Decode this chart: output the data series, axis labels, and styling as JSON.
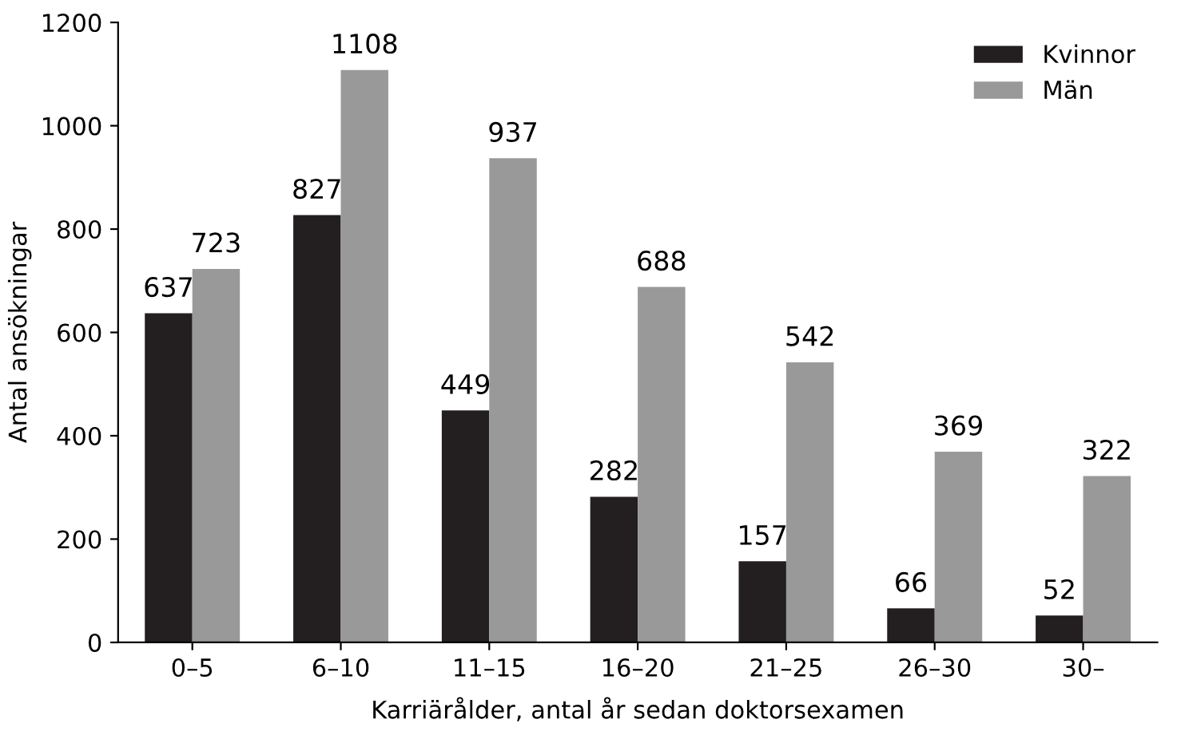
{
  "chart_data": {
    "type": "bar",
    "xlabel": "Karriärålder, antal år sedan doktorsexamen",
    "ylabel": "Antal ansökningar",
    "categories": [
      "0–5",
      "6–10",
      "11–15",
      "16–20",
      "21–25",
      "26–30",
      "30–"
    ],
    "series": [
      {
        "name": "Kvinnor",
        "color": "#231f20",
        "values": [
          637,
          827,
          449,
          282,
          157,
          66,
          52
        ]
      },
      {
        "name": "Män",
        "color": "#999999",
        "values": [
          723,
          1108,
          937,
          688,
          542,
          369,
          322
        ]
      }
    ],
    "ylim": [
      0,
      1200
    ],
    "yticks": [
      0,
      200,
      400,
      600,
      800,
      1000,
      1200
    ],
    "data_labels": true,
    "legend": "top right",
    "grid": false
  }
}
